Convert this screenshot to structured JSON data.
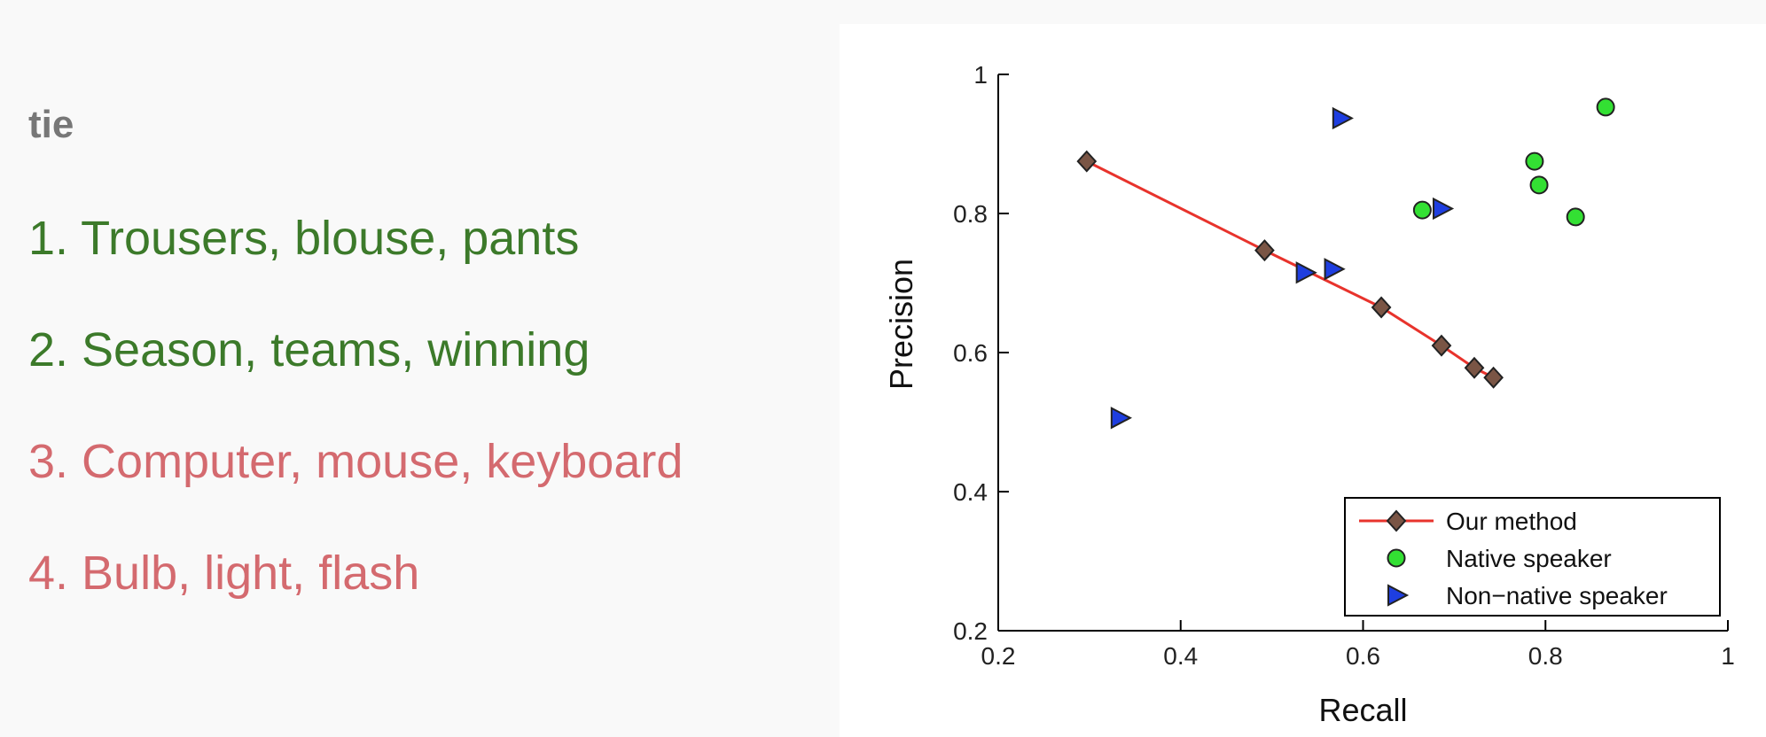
{
  "word_list": {
    "title": "tie",
    "items": [
      {
        "text": "1. Trousers, blouse, pants",
        "color": "#3c7a2a"
      },
      {
        "text": "2. Season, teams, winning",
        "color": "#3c7a2a"
      },
      {
        "text": "3. Computer, mouse, keyboard",
        "color": "#d46a6f"
      },
      {
        "text": "4. Bulb, light, flash",
        "color": "#d46a6f"
      }
    ]
  },
  "chart_data": {
    "type": "scatter",
    "xlabel": "Recall",
    "ylabel": "Precision",
    "xlim": [
      0.2,
      1
    ],
    "ylim": [
      0.2,
      1
    ],
    "xticks": [
      "0.2",
      "0.4",
      "0.6",
      "0.8",
      "1"
    ],
    "yticks": [
      "0.2",
      "0.4",
      "0.6",
      "0.8",
      "1"
    ],
    "grid": false,
    "legend_position": "bottom-right",
    "series": [
      {
        "name": "Our method",
        "marker": "diamond",
        "line": true,
        "line_color": "#e8332c",
        "marker_color": "#7a5545",
        "points": [
          {
            "x": 0.297,
            "y": 0.875
          },
          {
            "x": 0.492,
            "y": 0.747
          },
          {
            "x": 0.62,
            "y": 0.665
          },
          {
            "x": 0.686,
            "y": 0.61
          },
          {
            "x": 0.722,
            "y": 0.578
          },
          {
            "x": 0.743,
            "y": 0.564
          }
        ]
      },
      {
        "name": "Native speaker",
        "marker": "circle",
        "line": false,
        "marker_color": "#33e033",
        "points": [
          {
            "x": 0.866,
            "y": 0.953
          },
          {
            "x": 0.788,
            "y": 0.875
          },
          {
            "x": 0.793,
            "y": 0.841
          },
          {
            "x": 0.833,
            "y": 0.795
          },
          {
            "x": 0.665,
            "y": 0.805
          }
        ]
      },
      {
        "name": "Non−native speaker",
        "marker": "triangle-right",
        "line": false,
        "marker_color": "#1e3ee0",
        "points": [
          {
            "x": 0.576,
            "y": 0.937
          },
          {
            "x": 0.686,
            "y": 0.807
          },
          {
            "x": 0.536,
            "y": 0.715
          },
          {
            "x": 0.567,
            "y": 0.72
          },
          {
            "x": 0.333,
            "y": 0.506
          }
        ]
      }
    ]
  }
}
